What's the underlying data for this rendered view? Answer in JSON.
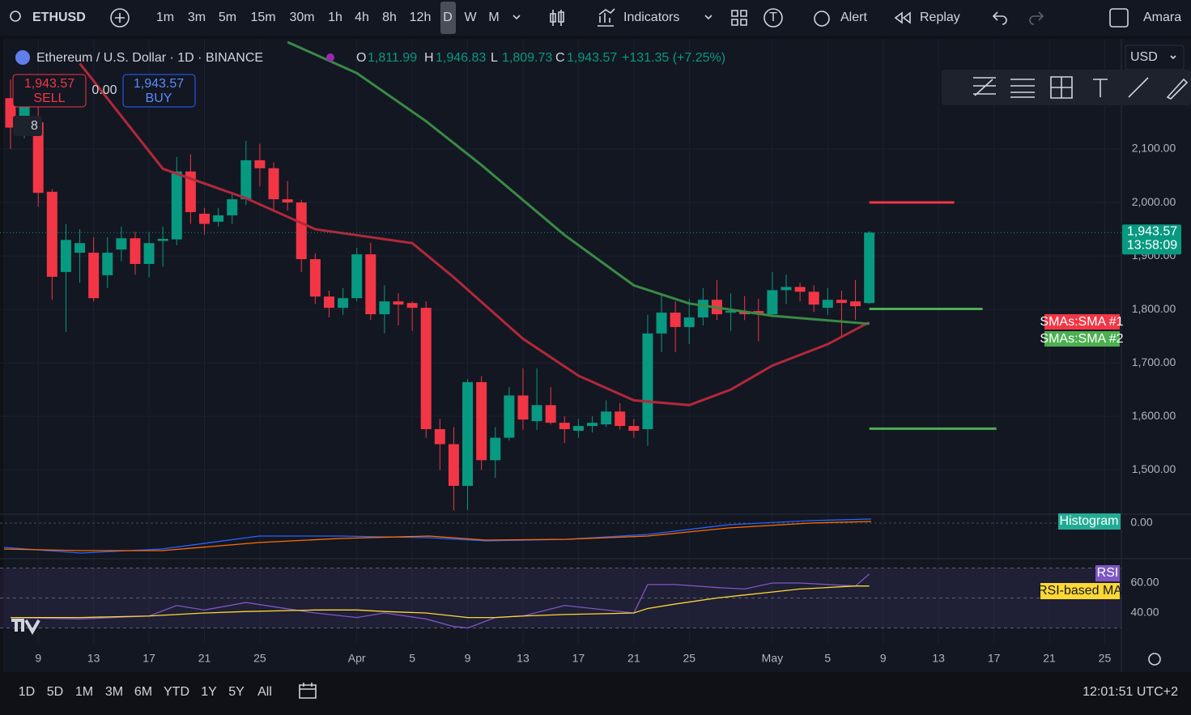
{
  "toolbar": {
    "symbol": "ETHUSD",
    "intervals": [
      "1m",
      "3m",
      "5m",
      "15m",
      "30m",
      "1h",
      "4h",
      "8h",
      "12h",
      "D",
      "W",
      "M"
    ],
    "indicators": "Indicators",
    "badge": "T",
    "alert": "Alert",
    "replay": "Replay",
    "user": "Amara"
  },
  "legend": {
    "title": "Ethereum / U.S. Dollar · 1D · BINANCE",
    "ohlc": [
      {
        "label": "O",
        "value": "1,811.99"
      },
      {
        "label": "H",
        "value": "1,946.83"
      },
      {
        "label": "L",
        "value": "1,809.73"
      },
      {
        "label": "C",
        "value": "1,943.57"
      }
    ],
    "change": "+131.35 (+7.25%)"
  },
  "trade": {
    "sell_price": "1,943.57",
    "sell": "SELL",
    "spread": "0.00",
    "buy_price": "1,943.57",
    "buy": "BUY",
    "count": "8"
  },
  "currency": "USD",
  "chart_data": {
    "type": "candlestick",
    "up_color": "#089981",
    "down_color": "#f23645",
    "xlim": [
      -0.76,
      80.2
    ],
    "xticks": [
      {
        "value": 2,
        "label": "9"
      },
      {
        "value": 6,
        "label": "13"
      },
      {
        "value": 10,
        "label": "17"
      },
      {
        "value": 14,
        "label": "21"
      },
      {
        "value": 18,
        "label": "25"
      },
      {
        "value": 25,
        "label": "Apr"
      },
      {
        "value": 29,
        "label": "5"
      },
      {
        "value": 33,
        "label": "9"
      },
      {
        "value": 37,
        "label": "13"
      },
      {
        "value": 41,
        "label": "17"
      },
      {
        "value": 45,
        "label": "21"
      },
      {
        "value": 49,
        "label": "25"
      },
      {
        "value": 55,
        "label": "May"
      },
      {
        "value": 59,
        "label": "5"
      },
      {
        "value": 63,
        "label": "9"
      },
      {
        "value": 67,
        "label": "13"
      },
      {
        "value": 71,
        "label": "17"
      },
      {
        "value": 75,
        "label": "21"
      },
      {
        "value": 79,
        "label": "25"
      }
    ],
    "ylim": [
      1417,
      2306
    ],
    "yticks": [
      {
        "value": 1500,
        "label": "1,500.00"
      },
      {
        "value": 1600,
        "label": "1,600.00"
      },
      {
        "value": 1700,
        "label": "1,700.00"
      },
      {
        "value": 1800,
        "label": "1,800.00"
      },
      {
        "value": 1900,
        "label": "1,900.00"
      },
      {
        "value": 2000,
        "label": "2,000.00"
      },
      {
        "value": 2100,
        "label": "2,100.00"
      }
    ],
    "open": [
      2195,
      2140,
      2150,
      2020,
      1870,
      1906,
      1906,
      1864,
      1912,
      1933,
      1885,
      1928,
      1931,
      2058,
      1979,
      1964,
      1976,
      2006,
      2079,
      2064,
      2006,
      2000,
      1894,
      1824,
      1803,
      1821,
      1903,
      1791,
      1815,
      1812,
      1803,
      1576,
      1548,
      1470,
      1664,
      1518,
      1560,
      1639,
      1591,
      1621,
      1588,
      1573,
      1582,
      1585,
      1609,
      1582,
      1576,
      1755,
      1794,
      1767,
      1785,
      1818,
      1794,
      1797,
      1797,
      1791,
      1836,
      1842,
      1833,
      1803,
      1818,
      1815,
      1811.99
    ],
    "high": [
      2230,
      2215,
      2190,
      2025,
      1960,
      1950,
      1935,
      1935,
      1955,
      1945,
      1945,
      1955,
      2085,
      2090,
      1990,
      1990,
      2020,
      2115,
      2110,
      2075,
      2040,
      2005,
      1905,
      1835,
      1840,
      1915,
      1925,
      1845,
      1830,
      1815,
      1815,
      1595,
      1580,
      1670,
      1675,
      1580,
      1655,
      1690,
      1690,
      1655,
      1600,
      1595,
      1600,
      1630,
      1625,
      1595,
      1790,
      1830,
      1815,
      1820,
      1840,
      1855,
      1830,
      1825,
      1820,
      1870,
      1865,
      1850,
      1845,
      1840,
      1835,
      1855,
      1946.83
    ],
    "low": [
      2100,
      2120,
      1992,
      1818,
      1758,
      1850,
      1815,
      1840,
      1890,
      1865,
      1860,
      1880,
      1920,
      1960,
      1940,
      1955,
      1960,
      1995,
      2030,
      1985,
      1985,
      1870,
      1810,
      1785,
      1790,
      1815,
      1780,
      1755,
      1770,
      1760,
      1560,
      1500,
      1424,
      1425,
      1500,
      1485,
      1555,
      1575,
      1575,
      1585,
      1550,
      1560,
      1570,
      1580,
      1575,
      1560,
      1545,
      1720,
      1720,
      1735,
      1770,
      1780,
      1760,
      1780,
      1740,
      1785,
      1810,
      1815,
      1795,
      1790,
      1750,
      1780,
      1809.73
    ],
    "close": [
      2140,
      2190,
      2018,
      1861,
      1930,
      1924,
      1821,
      1906,
      1933,
      1885,
      1924,
      1932,
      2058,
      1982,
      1960,
      1976,
      2006,
      2079,
      2064,
      2006,
      2000,
      1894,
      1824,
      1803,
      1821,
      1903,
      1791,
      1815,
      1809,
      1803,
      1576,
      1548,
      1470,
      1664,
      1518,
      1560,
      1639,
      1594,
      1621,
      1588,
      1576,
      1582,
      1588,
      1609,
      1582,
      1573,
      1755,
      1794,
      1767,
      1785,
      1818,
      1791,
      1797,
      1791,
      1791,
      1836,
      1842,
      1833,
      1809,
      1818,
      1812,
      1806,
      1943.57
    ],
    "series": [
      {
        "name": "SMAs:SMA #1",
        "color": "#b2283a",
        "x": [
          5,
          11,
          17,
          22,
          29,
          32,
          37,
          41,
          45,
          49,
          52,
          55,
          59,
          62
        ],
        "values": [
          2260,
          2063,
          2008,
          1950,
          1924,
          1860,
          1745,
          1676,
          1630,
          1621,
          1650,
          1695,
          1735,
          1776
        ]
      },
      {
        "name": "SMAs:SMA #2",
        "color": "#3a8a45",
        "x": [
          20,
          25,
          30,
          34,
          40,
          45,
          49,
          55,
          62
        ],
        "values": [
          2300,
          2242,
          2152,
          2070,
          1939,
          1845,
          1811,
          1788,
          1773
        ]
      }
    ],
    "last_price": {
      "value": 1943.57,
      "label": "1,943.57",
      "countdown": "13:58:09"
    },
    "levels": [
      {
        "value": 2000,
        "color": "#f23645"
      },
      {
        "value": 1801,
        "color": "#4caf50"
      },
      {
        "value": 1577,
        "color": "#4caf50"
      }
    ],
    "macd": {
      "name": "Histogram",
      "zero": "0.00"
    },
    "rsi": {
      "name": "RSI",
      "ma_name": "RSI-based MA",
      "ylim": [
        19.5,
        76.2
      ],
      "yticks": [
        {
          "value": 60,
          "label": "60.00"
        },
        {
          "value": 40,
          "label": "40.00"
        }
      ],
      "bands": [
        30,
        50,
        70
      ],
      "x": [
        0,
        5,
        10,
        12,
        14,
        17,
        22,
        25,
        27,
        30,
        32,
        33,
        35,
        37,
        40,
        45,
        46,
        48,
        51,
        53,
        55,
        57,
        61,
        62
      ],
      "values": [
        37,
        36,
        38,
        45,
        42,
        47,
        40,
        37,
        40,
        36,
        31,
        30,
        37,
        38,
        45,
        40,
        59,
        59,
        57,
        56,
        60,
        60,
        58,
        66
      ],
      "ma_values": [
        37,
        37,
        38,
        39,
        40,
        41,
        42,
        42,
        41,
        40,
        38,
        37,
        37,
        38,
        39,
        40,
        43,
        46,
        50,
        52,
        54,
        56,
        58,
        58
      ]
    }
  },
  "range_bar": {
    "ranges": [
      "1D",
      "5D",
      "1M",
      "3M",
      "6M",
      "YTD",
      "1Y",
      "5Y",
      "All"
    ],
    "clock": "12:01:51 UTC+2"
  }
}
